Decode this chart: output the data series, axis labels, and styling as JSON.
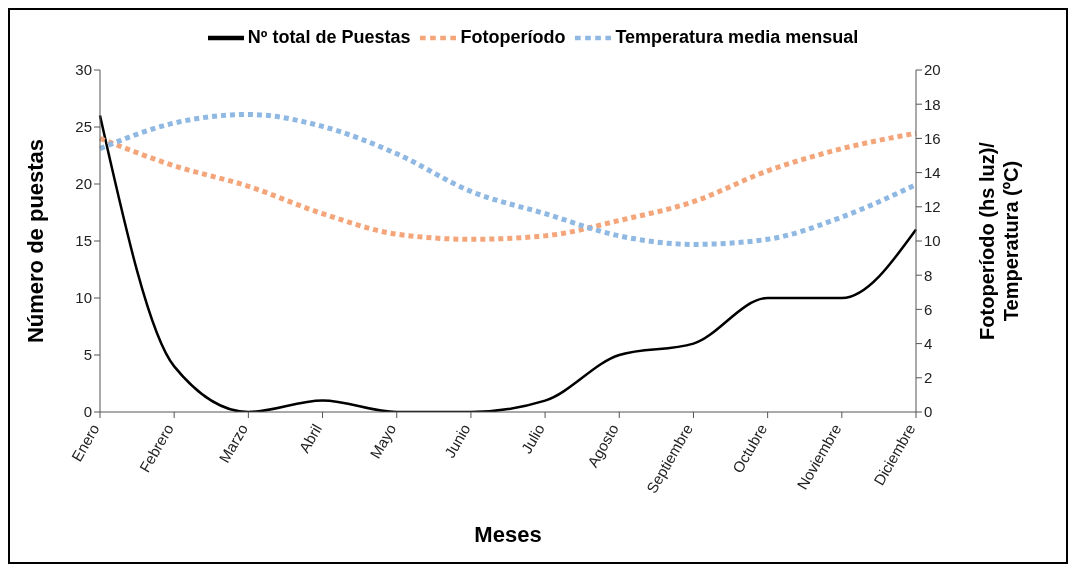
{
  "chart_data": {
    "type": "line",
    "xlabel": "Meses",
    "ylabel": "Número de puestas",
    "y2label": "Fotoperíodo (hs luz)/\nTemperatura (ºC)",
    "categories": [
      "Enero",
      "Febrero",
      "Marzo",
      "Abril",
      "Mayo",
      "Junio",
      "Julio",
      "Agosto",
      "Septiembre",
      "Octubre",
      "Noviembre",
      "Diciembre"
    ],
    "series": [
      {
        "name": "Nº total de Puestas",
        "color": "#000000",
        "line_style": "solid",
        "values": [
          26,
          4,
          0,
          1,
          0,
          0,
          1,
          5,
          6,
          10,
          10,
          16
        ]
      },
      {
        "name": "Fotoperíodo",
        "color": "#f4a57a",
        "line_style": "dotted",
        "axis": "y2",
        "values": [
          16.0,
          14.4,
          13.2,
          11.6,
          10.4,
          10.1,
          10.3,
          11.2,
          12.3,
          14.1,
          15.4,
          16.3
        ]
      },
      {
        "name": "Temperatura media mensual",
        "color": "#8fb8e3",
        "line_style": "dotted",
        "axis": "y2",
        "values": [
          15.4,
          16.9,
          17.4,
          16.7,
          15.1,
          12.9,
          11.6,
          10.3,
          9.8,
          10.1,
          11.4,
          13.3
        ]
      }
    ],
    "ylim": [
      0,
      30
    ],
    "yticks": [
      0,
      5,
      10,
      15,
      20,
      25,
      30
    ],
    "y2lim": [
      0,
      20
    ],
    "y2ticks": [
      0,
      2,
      4,
      6,
      8,
      10,
      12,
      14,
      16,
      18,
      20
    ],
    "grid": false,
    "legend": "top",
    "marker": "none"
  }
}
